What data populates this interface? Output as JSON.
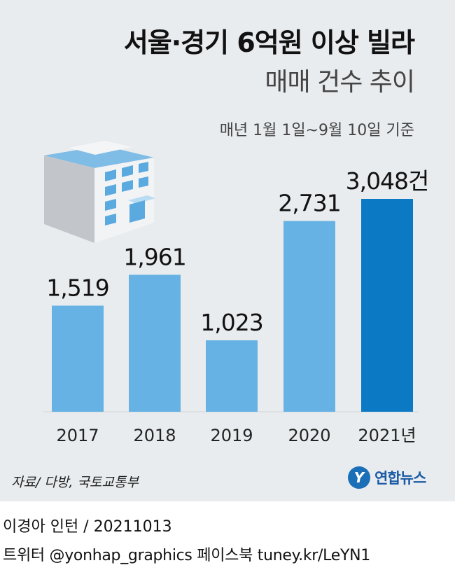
{
  "header": {
    "title": "서울·경기 6억원 이상 빌라",
    "subtitle": "매매 건수 추이",
    "note": "매년 1월 1일~9월 10일 기준"
  },
  "chart_data": {
    "type": "bar",
    "categories": [
      "2017",
      "2018",
      "2019",
      "2020",
      "2021년"
    ],
    "values": [
      1519,
      1961,
      1023,
      2731,
      3048
    ],
    "value_labels": [
      "1,519",
      "1,961",
      "1,023",
      "2,731",
      "3,048건"
    ],
    "colors": [
      "#66b2e4",
      "#66b2e4",
      "#66b2e4",
      "#66b2e4",
      "#0b79c4"
    ],
    "ylim": [
      0,
      3048
    ],
    "grid": false,
    "legend": "none"
  },
  "footer": {
    "source": "자료/ 다방, 국토교통부",
    "logo_mark": "Y",
    "logo_text": "연합뉴스",
    "credit": "이경아 인턴 / 20211013",
    "social": "트위터 @yonhap_graphics  페이스북 tuney.kr/LeYN1"
  }
}
